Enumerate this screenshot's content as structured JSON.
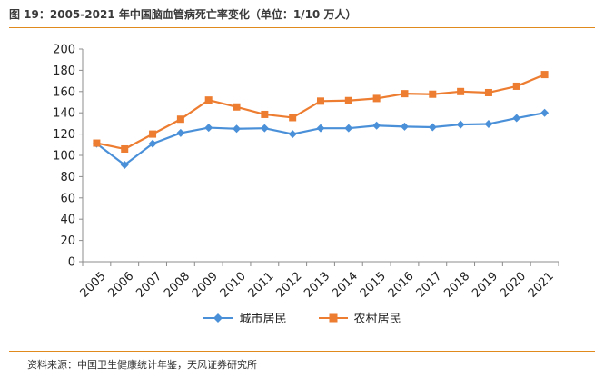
{
  "header": {
    "title": "图 19：2005-2021 年中国脑血管病死亡率变化（单位：1/10 万人）"
  },
  "footer": {
    "source": "资料来源：中国卫生健康统计年鉴，天风证券研究所"
  },
  "chart_data": {
    "type": "line",
    "title": "",
    "xlabel": "",
    "ylabel": "",
    "categories": [
      "2005",
      "2006",
      "2007",
      "2008",
      "2009",
      "2010",
      "2011",
      "2012",
      "2013",
      "2014",
      "2015",
      "2016",
      "2017",
      "2018",
      "2019",
      "2020",
      "2021"
    ],
    "ylim": [
      0,
      200
    ],
    "yticks": [
      0,
      20,
      40,
      60,
      80,
      100,
      120,
      140,
      160,
      180,
      200
    ],
    "grid": false,
    "legend_position": "bottom",
    "series": [
      {
        "name": "城市居民",
        "color": "#4a90d9",
        "marker": "diamond",
        "values": [
          111,
          91,
          111,
          121,
          126,
          125,
          125.5,
          120,
          125.5,
          125.5,
          128,
          127,
          126.5,
          129,
          129.5,
          135,
          140
        ]
      },
      {
        "name": "农村居民",
        "color": "#ed7d31",
        "marker": "square",
        "values": [
          111.5,
          106,
          120,
          134,
          152,
          145.5,
          138.5,
          135.5,
          151,
          151.5,
          153.5,
          158,
          157.5,
          160,
          159,
          165,
          176
        ]
      }
    ]
  }
}
